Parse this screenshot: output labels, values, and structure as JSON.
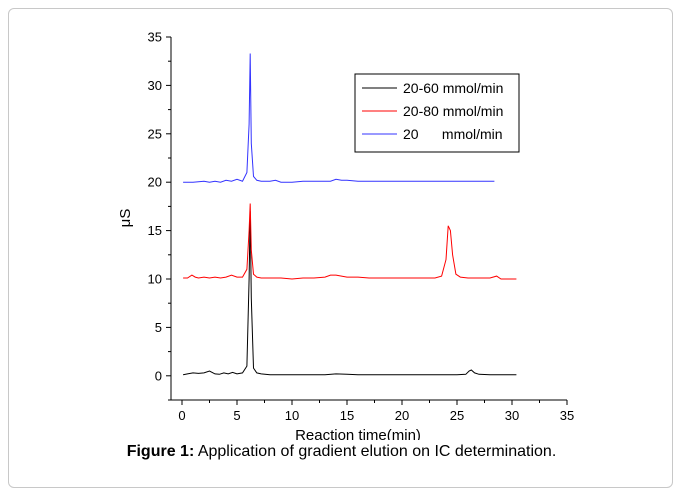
{
  "chart_data": {
    "type": "line",
    "xlabel": "Reaction time(min)",
    "ylabel": "μS",
    "xlim": [
      -1,
      35
    ],
    "ylim": [
      -2.5,
      35
    ],
    "xticks": [
      0,
      5,
      10,
      15,
      20,
      25,
      30,
      35
    ],
    "yticks": [
      0,
      5,
      10,
      15,
      20,
      25,
      30,
      35
    ],
    "grid": false,
    "legend_position": "top-right",
    "series": [
      {
        "name": "20-60 mmol/min",
        "color": "#000000",
        "x": [
          0.1,
          0.5,
          1.0,
          1.5,
          2.0,
          2.5,
          3.0,
          3.4,
          3.8,
          4.2,
          4.6,
          5.0,
          5.5,
          5.9,
          6.1,
          6.2,
          6.3,
          6.5,
          6.8,
          7.2,
          8.0,
          9.0,
          10.0,
          11.0,
          12.0,
          13.0,
          14.0,
          15.0,
          16.0,
          17.0,
          18.0,
          19.0,
          20.0,
          21.0,
          22.0,
          23.0,
          24.0,
          25.0,
          25.8,
          26.1,
          26.3,
          26.6,
          27.0,
          28.0,
          29.0,
          30.4
        ],
        "y": [
          0.1,
          0.2,
          0.3,
          0.25,
          0.3,
          0.5,
          0.2,
          0.15,
          0.3,
          0.2,
          0.35,
          0.2,
          0.3,
          1.0,
          10.0,
          17.0,
          8.0,
          0.8,
          0.3,
          0.2,
          0.1,
          0.1,
          0.1,
          0.1,
          0.1,
          0.1,
          0.2,
          0.15,
          0.1,
          0.1,
          0.1,
          0.1,
          0.1,
          0.1,
          0.1,
          0.1,
          0.1,
          0.1,
          0.15,
          0.5,
          0.6,
          0.3,
          0.15,
          0.1,
          0.1,
          0.1
        ]
      },
      {
        "name": "20-80 mmol/min",
        "color": "#ff0000",
        "x": [
          0.1,
          0.5,
          0.9,
          1.2,
          1.5,
          2.0,
          2.5,
          3.0,
          3.5,
          4.0,
          4.5,
          5.0,
          5.5,
          5.9,
          6.1,
          6.2,
          6.3,
          6.5,
          6.8,
          7.2,
          8.0,
          9.0,
          10.0,
          11.0,
          12.0,
          13.0,
          13.5,
          14.0,
          14.5,
          15.0,
          16.0,
          17.0,
          18.0,
          19.0,
          20.0,
          21.0,
          22.0,
          23.0,
          23.6,
          24.0,
          24.2,
          24.4,
          24.6,
          24.9,
          25.3,
          26.0,
          27.0,
          28.0,
          28.6,
          29.0,
          30.4
        ],
        "y": [
          10.1,
          10.1,
          10.4,
          10.2,
          10.1,
          10.2,
          10.1,
          10.2,
          10.1,
          10.2,
          10.4,
          10.2,
          10.2,
          11.0,
          15.0,
          17.8,
          13.0,
          10.5,
          10.2,
          10.1,
          10.1,
          10.1,
          10.0,
          10.1,
          10.1,
          10.2,
          10.4,
          10.4,
          10.3,
          10.2,
          10.2,
          10.1,
          10.1,
          10.1,
          10.1,
          10.1,
          10.1,
          10.1,
          10.3,
          12.0,
          15.5,
          15.0,
          12.5,
          10.5,
          10.2,
          10.1,
          10.1,
          10.1,
          10.3,
          10.0,
          10.0
        ]
      },
      {
        "name": "20      mmol/min",
        "color": "#3333ff",
        "x": [
          0.1,
          1.0,
          2.0,
          2.5,
          3.0,
          3.5,
          4.0,
          4.5,
          5.0,
          5.5,
          5.9,
          6.1,
          6.2,
          6.3,
          6.5,
          6.8,
          7.2,
          8.0,
          8.5,
          9.0,
          10.0,
          11.0,
          12.0,
          13.0,
          13.5,
          14.0,
          14.5,
          15.0,
          16.0,
          17.0,
          18.0,
          20.0,
          22.0,
          24.0,
          26.0,
          28.4
        ],
        "y": [
          20.0,
          20.0,
          20.1,
          20.0,
          20.1,
          20.0,
          20.2,
          20.1,
          20.3,
          20.1,
          21.0,
          26.0,
          33.3,
          24.0,
          20.6,
          20.2,
          20.1,
          20.1,
          20.2,
          20.0,
          20.0,
          20.1,
          20.1,
          20.1,
          20.1,
          20.3,
          20.2,
          20.2,
          20.1,
          20.1,
          20.1,
          20.1,
          20.1,
          20.1,
          20.1,
          20.1
        ]
      }
    ]
  },
  "caption": {
    "label": "Figure 1:",
    "text": " Application of gradient elution on IC determination."
  }
}
